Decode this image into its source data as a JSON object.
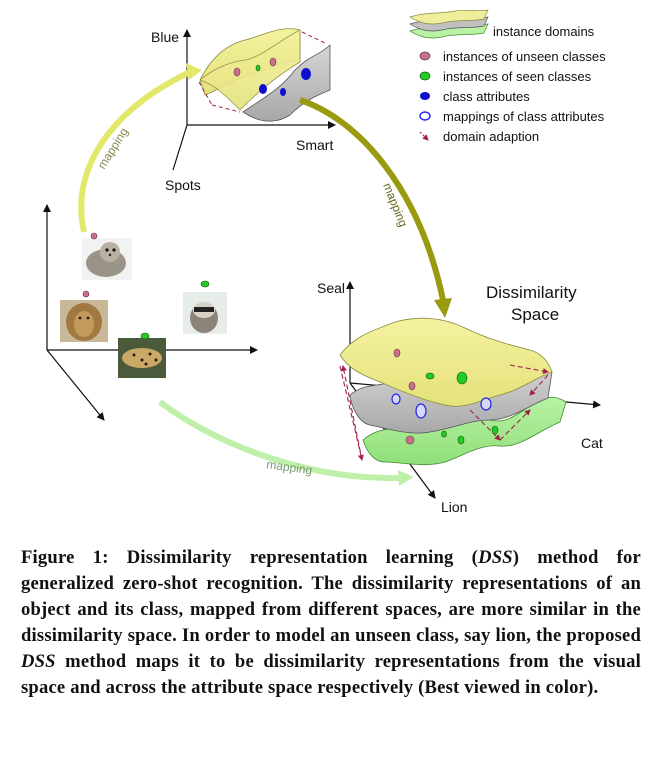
{
  "figure": {
    "axes_top": {
      "y_label": "Blue",
      "x_label": "Smart",
      "z_label": "Spots"
    },
    "axes_right": {
      "y_label": "Seal",
      "x_label": "Cat",
      "z_label": "Lion"
    },
    "space_title_line1": "Dissimilarity",
    "space_title_line2": "Space",
    "mapping_labels": [
      "mapping",
      "mapping",
      "mapping"
    ],
    "legend": [
      {
        "icon": "instance-domains-icon",
        "text": "instance domains"
      },
      {
        "icon": "unseen-instance-dot-icon",
        "text": "instances of unseen classes",
        "color": "#c9718a"
      },
      {
        "icon": "seen-instance-dot-icon",
        "text": "instances of seen classes",
        "color": "#22cc22"
      },
      {
        "icon": "class-attribute-dot-icon",
        "text": "class attributes",
        "color": "#1010cc"
      },
      {
        "icon": "attribute-mapping-ring-icon",
        "text": "mappings of class attributes",
        "color": "#2222ee"
      },
      {
        "icon": "domain-adaption-arrow-icon",
        "text": "domain adaption",
        "color": "#a0204a"
      }
    ],
    "animal_images": [
      "seal-photo-icon",
      "lion-photo-icon",
      "leopard-photo-icon",
      "raccoon-photo-icon"
    ]
  },
  "caption": {
    "part1": "Figure 1: Dissimilarity representation learning (",
    "dss1": "DSS",
    "part2": ") method for generalized zero-shot recognition. The dissimilarity representations of an object and its class, mapped from different spaces, are more similar in the dissimilarity space. In order to model an unseen class, say lion, the proposed ",
    "dss2": "DSS",
    "part3": " method maps it to be dissimilarity representations from the visual space and across the attribute space respectively (Best viewed in color)."
  }
}
